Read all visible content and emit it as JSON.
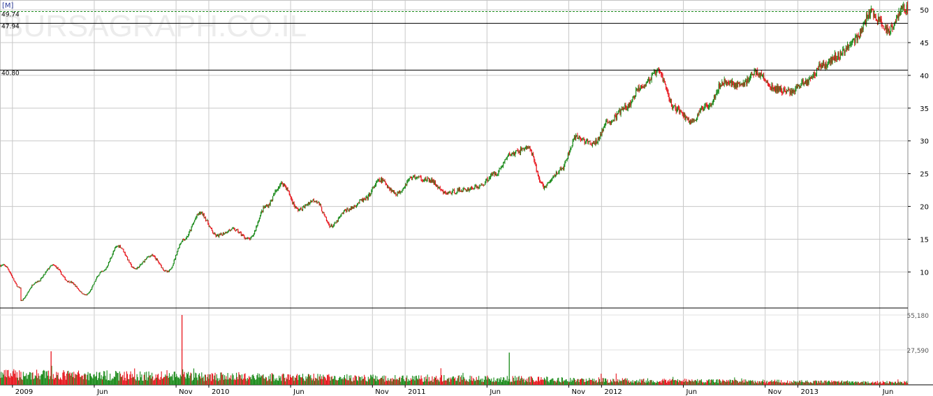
{
  "watermark": "BURSAGRAPH.CO.IL",
  "period_label": "[M]",
  "colors": {
    "up": "#1a8a1a",
    "down": "#e8141c",
    "grid": "#c8c8c8",
    "level": "#000000",
    "last_price": "#1a8a1a"
  },
  "chart_data": {
    "type": "candlestick",
    "price_axis": {
      "ticks": [
        "50",
        "45",
        "40",
        "35",
        "30",
        "25",
        "20",
        "15",
        "10"
      ],
      "ylim": [
        4.5,
        51.5
      ]
    },
    "volume_axis": {
      "ticks": [
        "55,180",
        "27,590"
      ],
      "ylim": [
        0,
        55180
      ]
    },
    "levels": [
      {
        "label": "49.74",
        "value": 49.74,
        "style": "dashed"
      },
      {
        "label": "47.94",
        "value": 47.94,
        "style": "solid"
      },
      {
        "label": "40.80",
        "value": 40.8,
        "style": "solid"
      }
    ],
    "x_labels": [
      "2009",
      "Jun",
      "Nov",
      "2010",
      "Jun",
      "Nov",
      "2011",
      "Jun",
      "Nov",
      "2012",
      "Jun",
      "Nov",
      "2013",
      "Jun"
    ],
    "x_label_dates": [
      "2009-01",
      "2009-06",
      "2009-11",
      "2010-01",
      "2010-06",
      "2010-11",
      "2011-01",
      "2011-06",
      "2011-11",
      "2012-01",
      "2012-06",
      "2012-11",
      "2013-01",
      "2013-06"
    ],
    "price_path": [
      [
        "2008-12",
        11.0
      ],
      [
        "2009-01",
        7.5
      ],
      [
        "2009-01",
        5.6
      ],
      [
        "2009-02",
        8.5
      ],
      [
        "2009-03",
        11.0
      ],
      [
        "2009-04",
        8.5
      ],
      [
        "2009-05",
        6.5
      ],
      [
        "2009-06",
        10.0
      ],
      [
        "2009-07",
        14.0
      ],
      [
        "2009-08",
        10.5
      ],
      [
        "2009-09",
        12.5
      ],
      [
        "2009-10",
        10.0
      ],
      [
        "2009-11",
        15.0
      ],
      [
        "2009-12",
        19.0
      ],
      [
        "2010-01",
        15.5
      ],
      [
        "2010-02",
        16.5
      ],
      [
        "2010-03",
        15.0
      ],
      [
        "2010-04",
        20.0
      ],
      [
        "2010-05",
        23.5
      ],
      [
        "2010-06",
        19.5
      ],
      [
        "2010-07",
        21.0
      ],
      [
        "2010-08",
        17.0
      ],
      [
        "2010-09",
        19.5
      ],
      [
        "2010-10",
        21.0
      ],
      [
        "2010-11",
        24.0
      ],
      [
        "2010-12",
        22.0
      ],
      [
        "2011-01",
        24.5
      ],
      [
        "2011-02",
        24.0
      ],
      [
        "2011-03",
        22.0
      ],
      [
        "2011-04",
        22.5
      ],
      [
        "2011-05",
        23.0
      ],
      [
        "2011-06",
        25.0
      ],
      [
        "2011-07",
        28.0
      ],
      [
        "2011-08",
        29.0
      ],
      [
        "2011-09",
        23.0
      ],
      [
        "2011-10",
        25.5
      ],
      [
        "2011-11",
        30.5
      ],
      [
        "2011-12",
        29.5
      ],
      [
        "2012-01",
        33.0
      ],
      [
        "2012-02",
        35.0
      ],
      [
        "2012-03",
        38.5
      ],
      [
        "2012-04",
        40.5
      ],
      [
        "2012-05",
        35.0
      ],
      [
        "2012-06",
        33.0
      ],
      [
        "2012-07",
        35.5
      ],
      [
        "2012-08",
        39.0
      ],
      [
        "2012-09",
        38.5
      ],
      [
        "2012-10",
        40.5
      ],
      [
        "2012-11",
        38.0
      ],
      [
        "2012-12",
        37.5
      ],
      [
        "2013-01",
        39.0
      ],
      [
        "2013-02",
        41.5
      ],
      [
        "2013-03",
        43.0
      ],
      [
        "2013-04",
        45.5
      ],
      [
        "2013-05",
        49.5
      ],
      [
        "2013-06",
        47.0
      ],
      [
        "2013-07",
        50.2
      ]
    ],
    "volume_profile": [
      [
        "2009-01",
        8000
      ],
      [
        "2009-06",
        7500
      ],
      [
        "2010-01",
        6500
      ],
      [
        "2010-06",
        6000
      ],
      [
        "2011-01",
        5000
      ],
      [
        "2011-06",
        5000
      ],
      [
        "2012-01",
        3500
      ],
      [
        "2012-06",
        3200
      ],
      [
        "2013-01",
        2500
      ],
      [
        "2013-07",
        2000
      ]
    ],
    "volume_spikes": [
      [
        "2009-03",
        26500
      ],
      [
        "2009-11",
        55180
      ],
      [
        "2011-07",
        25500
      ]
    ]
  }
}
